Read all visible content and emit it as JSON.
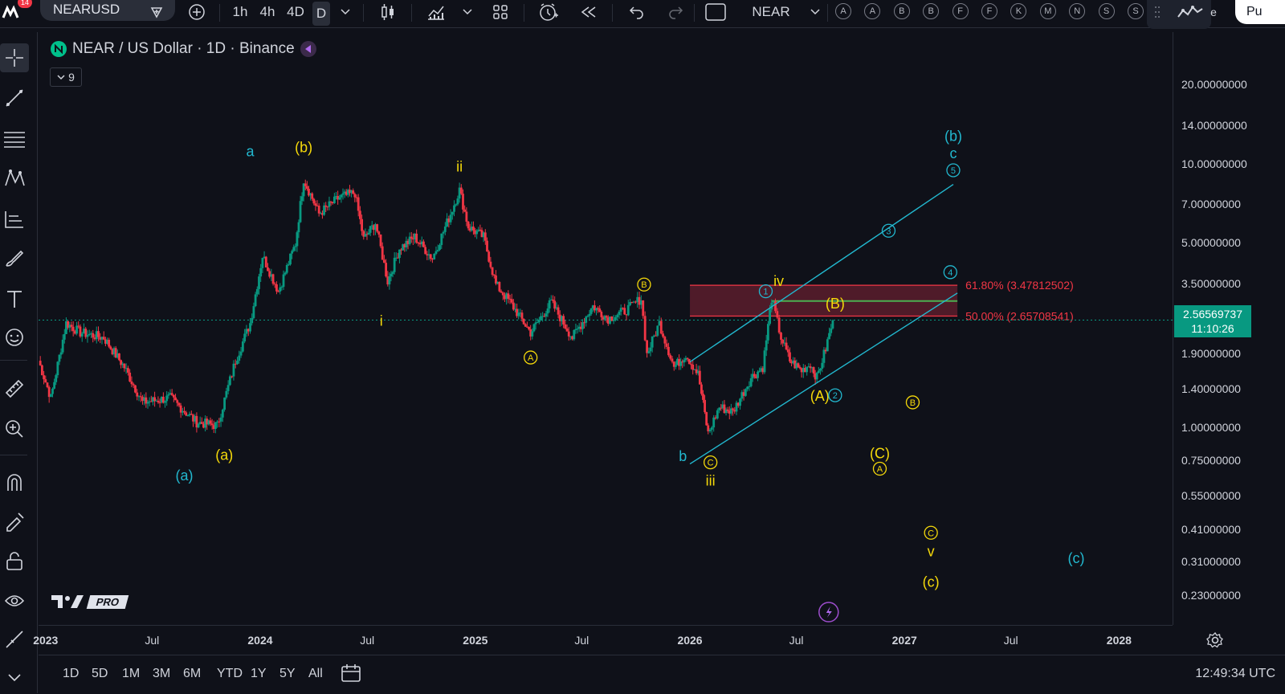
{
  "toolbar": {
    "symbol": "NEARUSD",
    "intervals": [
      "1h",
      "4h",
      "4D",
      "D"
    ],
    "active_interval": "D",
    "compare_symbol": "NEAR",
    "notification_badge": "14",
    "alert_letters": [
      "A",
      "A",
      "B",
      "B",
      "F",
      "F",
      "K",
      "M",
      "N",
      "S",
      "S"
    ],
    "publish_label": "Pu",
    "trailing_letter": "e"
  },
  "legend": {
    "title": "NEAR / US Dollar · 1D · Binance",
    "indicator_count": "9"
  },
  "price_badge": {
    "price": "2.56569737",
    "countdown": "11:10:26"
  },
  "bottom": {
    "ranges": [
      "1D",
      "5D",
      "1M",
      "3M",
      "6M",
      "YTD",
      "1Y",
      "5Y",
      "All"
    ],
    "clock": "12:49:34 UTC"
  },
  "branding": {
    "pro": "PRO"
  },
  "colors": {
    "background": "#0f1119",
    "cyan": "#22b8cf",
    "yellow": "#f5d90a",
    "fib_red": "#f23645",
    "fib_zone": "#6b2030",
    "green_line": "#4caf50",
    "up": "#089981",
    "down": "#f23645"
  },
  "chart_data": {
    "type": "candlestick",
    "title": "NEAR / US Dollar · 1D · Binance",
    "y_scale": "log",
    "ylim": [
      0.2,
      28
    ],
    "y_ticks": [
      "20.00000000",
      "14.00000000",
      "10.00000000",
      "7.00000000",
      "5.00000000",
      "3.50000000",
      "1.90000000",
      "1.40000000",
      "1.00000000",
      "0.75000000",
      "0.55000000",
      "0.41000000",
      "0.31000000",
      "0.23000000"
    ],
    "y_tick_values": [
      20,
      14,
      10,
      7,
      5,
      3.5,
      1.9,
      1.4,
      1.0,
      0.75,
      0.55,
      0.41,
      0.31,
      0.23
    ],
    "x_ticks": [
      "2023",
      "Jul",
      "2024",
      "Jul",
      "2025",
      "Jul",
      "2026",
      "Jul",
      "2027",
      "Jul",
      "2028"
    ],
    "x_tick_values": [
      "2023-01-01",
      "2023-07-01",
      "2024-01-01",
      "2024-07-01",
      "2025-01-01",
      "2025-07-01",
      "2026-01-01",
      "2026-07-01",
      "2027-01-01",
      "2027-07-01",
      "2028-01-01"
    ],
    "xlim": [
      "2022-12-20",
      "2028-04-01"
    ],
    "last_price": 2.56569737,
    "price_path": [
      [
        "2022-12-20",
        1.8
      ],
      [
        "2023-01-10",
        1.3
      ],
      [
        "2023-02-05",
        2.5
      ],
      [
        "2023-03-01",
        2.3
      ],
      [
        "2023-04-10",
        2.2
      ],
      [
        "2023-05-15",
        1.7
      ],
      [
        "2023-06-15",
        1.25
      ],
      [
        "2023-08-01",
        1.3
      ],
      [
        "2023-09-15",
        1.05
      ],
      [
        "2023-10-20",
        1.02
      ],
      [
        "2023-11-20",
        1.8
      ],
      [
        "2023-12-15",
        2.5
      ],
      [
        "2024-01-05",
        4.5
      ],
      [
        "2024-02-01",
        3.3
      ],
      [
        "2024-03-01",
        5.0
      ],
      [
        "2024-03-15",
        8.8
      ],
      [
        "2024-04-10",
        6.5
      ],
      [
        "2024-05-15",
        7.5
      ],
      [
        "2024-06-10",
        7.8
      ],
      [
        "2024-06-25",
        5.2
      ],
      [
        "2024-07-15",
        6.0
      ],
      [
        "2024-08-05",
        3.6
      ],
      [
        "2024-08-25",
        4.8
      ],
      [
        "2024-09-20",
        5.3
      ],
      [
        "2024-10-20",
        4.4
      ],
      [
        "2024-11-20",
        6.5
      ],
      [
        "2024-12-05",
        8.0
      ],
      [
        "2024-12-20",
        5.8
      ],
      [
        "2025-01-15",
        5.3
      ],
      [
        "2025-02-05",
        3.5
      ],
      [
        "2025-03-01",
        3.0
      ],
      [
        "2025-04-05",
        2.3
      ],
      [
        "2025-05-10",
        3.0
      ],
      [
        "2025-06-15",
        2.2
      ],
      [
        "2025-07-20",
        2.9
      ],
      [
        "2025-08-15",
        2.6
      ],
      [
        "2025-09-15",
        2.8
      ],
      [
        "2025-10-10",
        3.1
      ],
      [
        "2025-10-20",
        1.9
      ],
      [
        "2025-11-10",
        2.5
      ],
      [
        "2025-12-05",
        1.7
      ],
      [
        "2025-12-25",
        1.9
      ],
      [
        "2026-01-15",
        1.6
      ],
      [
        "2026-02-01",
        0.95
      ],
      [
        "2026-02-20",
        1.2
      ],
      [
        "2026-03-15",
        1.15
      ],
      [
        "2026-04-15",
        1.55
      ],
      [
        "2026-05-05",
        1.7
      ],
      [
        "2026-05-20",
        3.1
      ],
      [
        "2026-06-05",
        2.2
      ],
      [
        "2026-06-20",
        1.8
      ],
      [
        "2026-07-10",
        1.65
      ],
      [
        "2026-07-25",
        1.75
      ],
      [
        "2026-08-05",
        1.55
      ],
      [
        "2026-08-20",
        2.0
      ],
      [
        "2026-09-01",
        2.56
      ]
    ],
    "fib_levels": [
      {
        "label": "61.80% (3.47812502)",
        "value": 3.47812502
      },
      {
        "label": "50.00% (2.65708541)",
        "value": 2.65708541
      }
    ],
    "fib_zone_start": "2026-01-01",
    "fib_zone_end": "2027-04-01",
    "green_line": {
      "value": 3.03,
      "start": "2026-05-20",
      "end": "2027-04-01"
    },
    "channel_lines": [
      {
        "from": [
          "2026-01-01",
          1.78
        ],
        "to": [
          "2027-03-25",
          8.4
        ]
      },
      {
        "from": [
          "2026-01-01",
          0.73
        ],
        "to": [
          "2027-04-01",
          3.25
        ]
      }
    ],
    "wave_labels": [
      {
        "text": "a",
        "date": "2023-12-15",
        "price": 11.2,
        "color": "cyan"
      },
      {
        "text": "(b)",
        "date": "2024-03-15",
        "price": 11.6,
        "color": "yellow"
      },
      {
        "text": "ii",
        "date": "2024-12-05",
        "price": 9.8,
        "color": "yellow"
      },
      {
        "text": "i",
        "date": "2024-07-25",
        "price": 2.55,
        "color": "yellow"
      },
      {
        "text": "(a)",
        "date": "2023-08-25",
        "price": 0.66,
        "color": "cyan"
      },
      {
        "text": "(a)",
        "date": "2023-11-01",
        "price": 0.79,
        "color": "yellow"
      },
      {
        "text": "B",
        "date": "2025-10-15",
        "price": 3.5,
        "color": "yellow",
        "circled": true
      },
      {
        "text": "A",
        "date": "2025-04-05",
        "price": 1.85,
        "color": "yellow",
        "circled": true
      },
      {
        "text": "b",
        "date": "2025-12-20",
        "price": 0.78,
        "color": "cyan"
      },
      {
        "text": "C",
        "date": "2026-02-05",
        "price": 0.74,
        "color": "yellow",
        "circled": true
      },
      {
        "text": "iii",
        "date": "2026-02-05",
        "price": 0.63,
        "color": "yellow"
      },
      {
        "text": "1",
        "date": "2026-05-10",
        "price": 3.3,
        "color": "cyan",
        "circled": true
      },
      {
        "text": "iv",
        "date": "2026-06-01",
        "price": 3.6,
        "color": "yellow"
      },
      {
        "text": "(B)",
        "date": "2026-09-05",
        "price": 2.96,
        "color": "yellow"
      },
      {
        "text": "(A)",
        "date": "2026-08-10",
        "price": 1.32,
        "color": "yellow"
      },
      {
        "text": "2",
        "date": "2026-09-05",
        "price": 1.33,
        "color": "cyan",
        "circled": true
      },
      {
        "text": "3",
        "date": "2026-12-05",
        "price": 5.6,
        "color": "cyan",
        "circled": true
      },
      {
        "text": "4",
        "date": "2027-03-20",
        "price": 3.9,
        "color": "cyan",
        "circled": true
      },
      {
        "text": "(b)",
        "date": "2027-03-25",
        "price": 12.8,
        "color": "cyan"
      },
      {
        "text": "c",
        "date": "2027-03-25",
        "price": 11.0,
        "color": "cyan"
      },
      {
        "text": "5",
        "date": "2027-03-25",
        "price": 9.5,
        "color": "cyan",
        "circled": true
      },
      {
        "text": "B",
        "date": "2027-01-15",
        "price": 1.25,
        "color": "yellow",
        "circled": true
      },
      {
        "text": "(C)",
        "date": "2026-11-20",
        "price": 0.8,
        "color": "yellow"
      },
      {
        "text": "A",
        "date": "2026-11-20",
        "price": 0.7,
        "color": "yellow",
        "circled": true
      },
      {
        "text": "C",
        "date": "2027-02-15",
        "price": 0.4,
        "color": "yellow",
        "circled": true
      },
      {
        "text": "v",
        "date": "2027-02-15",
        "price": 0.34,
        "color": "yellow"
      },
      {
        "text": "(c)",
        "date": "2027-02-15",
        "price": 0.26,
        "color": "yellow"
      },
      {
        "text": "(c)",
        "date": "2027-10-20",
        "price": 0.32,
        "color": "cyan"
      }
    ]
  }
}
